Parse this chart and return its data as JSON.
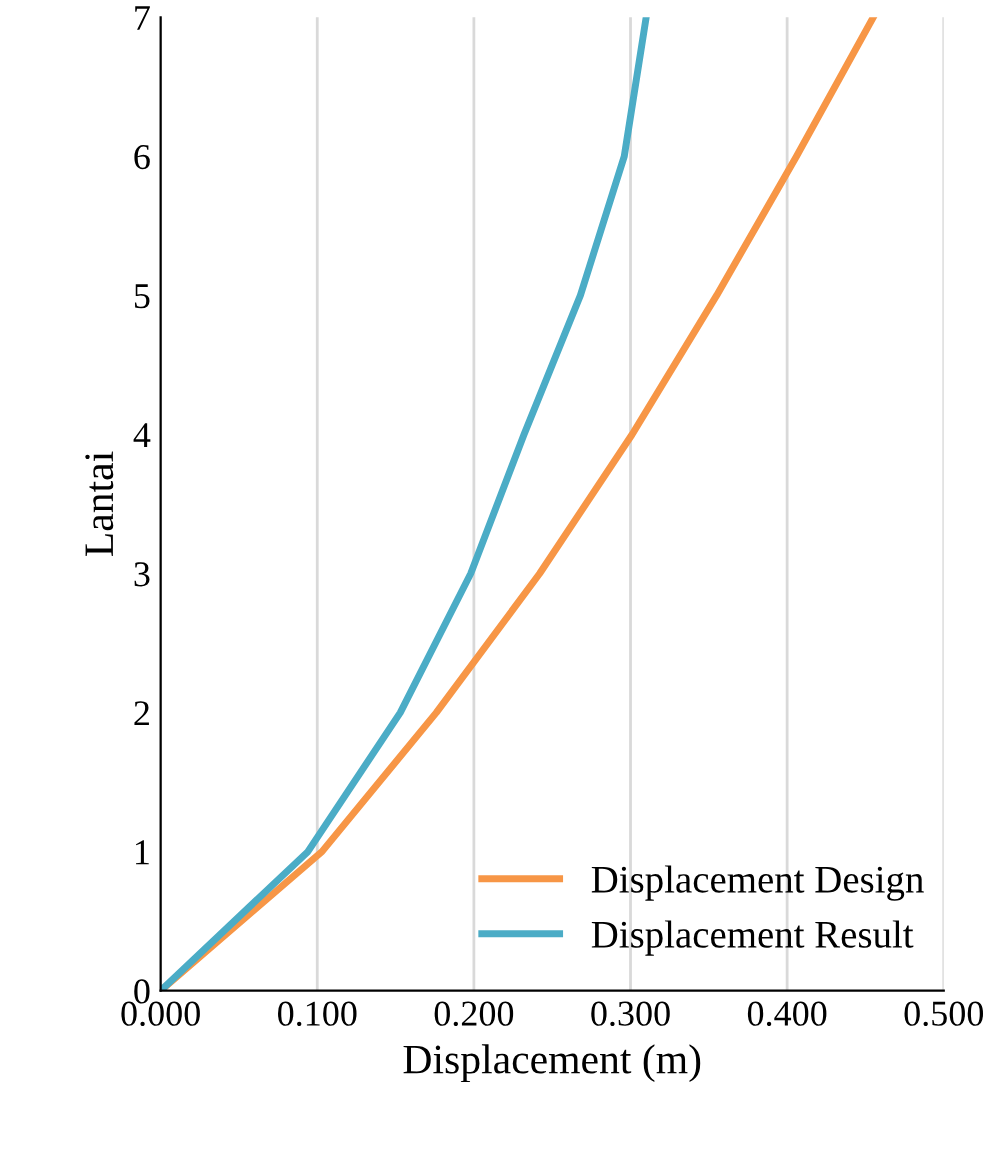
{
  "chart_data": {
    "type": "line",
    "xlabel": "Displacement (m)",
    "ylabel": "Lantai",
    "series": [
      {
        "name": "Displacement Design",
        "color": "#f79646",
        "x": [
          0,
          0.103,
          0.176,
          0.242,
          0.301,
          0.355,
          0.406,
          0.455
        ],
        "values": [
          0,
          1,
          2,
          3,
          4,
          5,
          6,
          7
        ]
      },
      {
        "name": "Displacement Result",
        "color": "#4bacc6",
        "x": [
          0,
          0.094,
          0.153,
          0.198,
          0.232,
          0.268,
          0.296,
          0.31
        ],
        "values": [
          0,
          1,
          2,
          3,
          4,
          5,
          6,
          7
        ]
      }
    ],
    "xlim": [
      0,
      0.5
    ],
    "xticks": [
      {
        "value": 0,
        "label": "0.000"
      },
      {
        "value": 0.1,
        "label": "0.100"
      },
      {
        "value": 0.2,
        "label": "0.200"
      },
      {
        "value": 0.3,
        "label": "0.300"
      },
      {
        "value": 0.4,
        "label": "0.400"
      },
      {
        "value": 0.5,
        "label": "0.500"
      }
    ],
    "ylim": [
      0,
      7
    ],
    "yticks": [
      0,
      1,
      2,
      3,
      4,
      5,
      6,
      7
    ],
    "grid": "x",
    "legend": "bottom right",
    "marker": "none",
    "line_style": "solid"
  }
}
